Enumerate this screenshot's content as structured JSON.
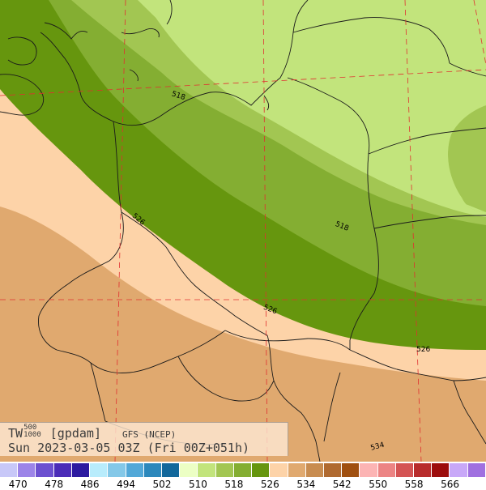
{
  "map": {
    "contour_labels": [
      "518",
      "526",
      "518",
      "526",
      "526",
      "534"
    ],
    "colors": {
      "light_green": "#c2e47c",
      "mid_green": "#a2c652",
      "dark_green": "#84ae32",
      "darkest_green": "#66960e",
      "peach": "#fdd3a8",
      "tan": "#e0a96f",
      "border_lines": "#1a1a1a",
      "grid_lines": "#e03030"
    }
  },
  "info": {
    "var": "TW",
    "top_level": "500",
    "bottom_level": "1000",
    "units": "[gpdam]",
    "model": "GFS (NCEP)",
    "datetime": "Sun 2023-03-05 03Z (Fri 00Z+051h)"
  },
  "colorbar": {
    "colors": [
      "#c8c8f8",
      "#9c84e8",
      "#6c50d0",
      "#4b2cb8",
      "#2c1aa0",
      "#b8ecfc",
      "#84c8e8",
      "#52a8d8",
      "#2c88bc",
      "#12689c",
      "#ecffc4",
      "#c2e47c",
      "#a2c652",
      "#84ae32",
      "#66960e",
      "#fdd3a8",
      "#e0a96f",
      "#c88c50",
      "#b06a30",
      "#a05010",
      "#fcb4b4",
      "#ec8484",
      "#d45454",
      "#b82c2c",
      "#9c0c0c",
      "#c8a8f8",
      "#a070e0"
    ],
    "labels": [
      "470",
      "478",
      "486",
      "494",
      "502",
      "510",
      "518",
      "526",
      "534",
      "542",
      "550",
      "558",
      "566"
    ]
  }
}
